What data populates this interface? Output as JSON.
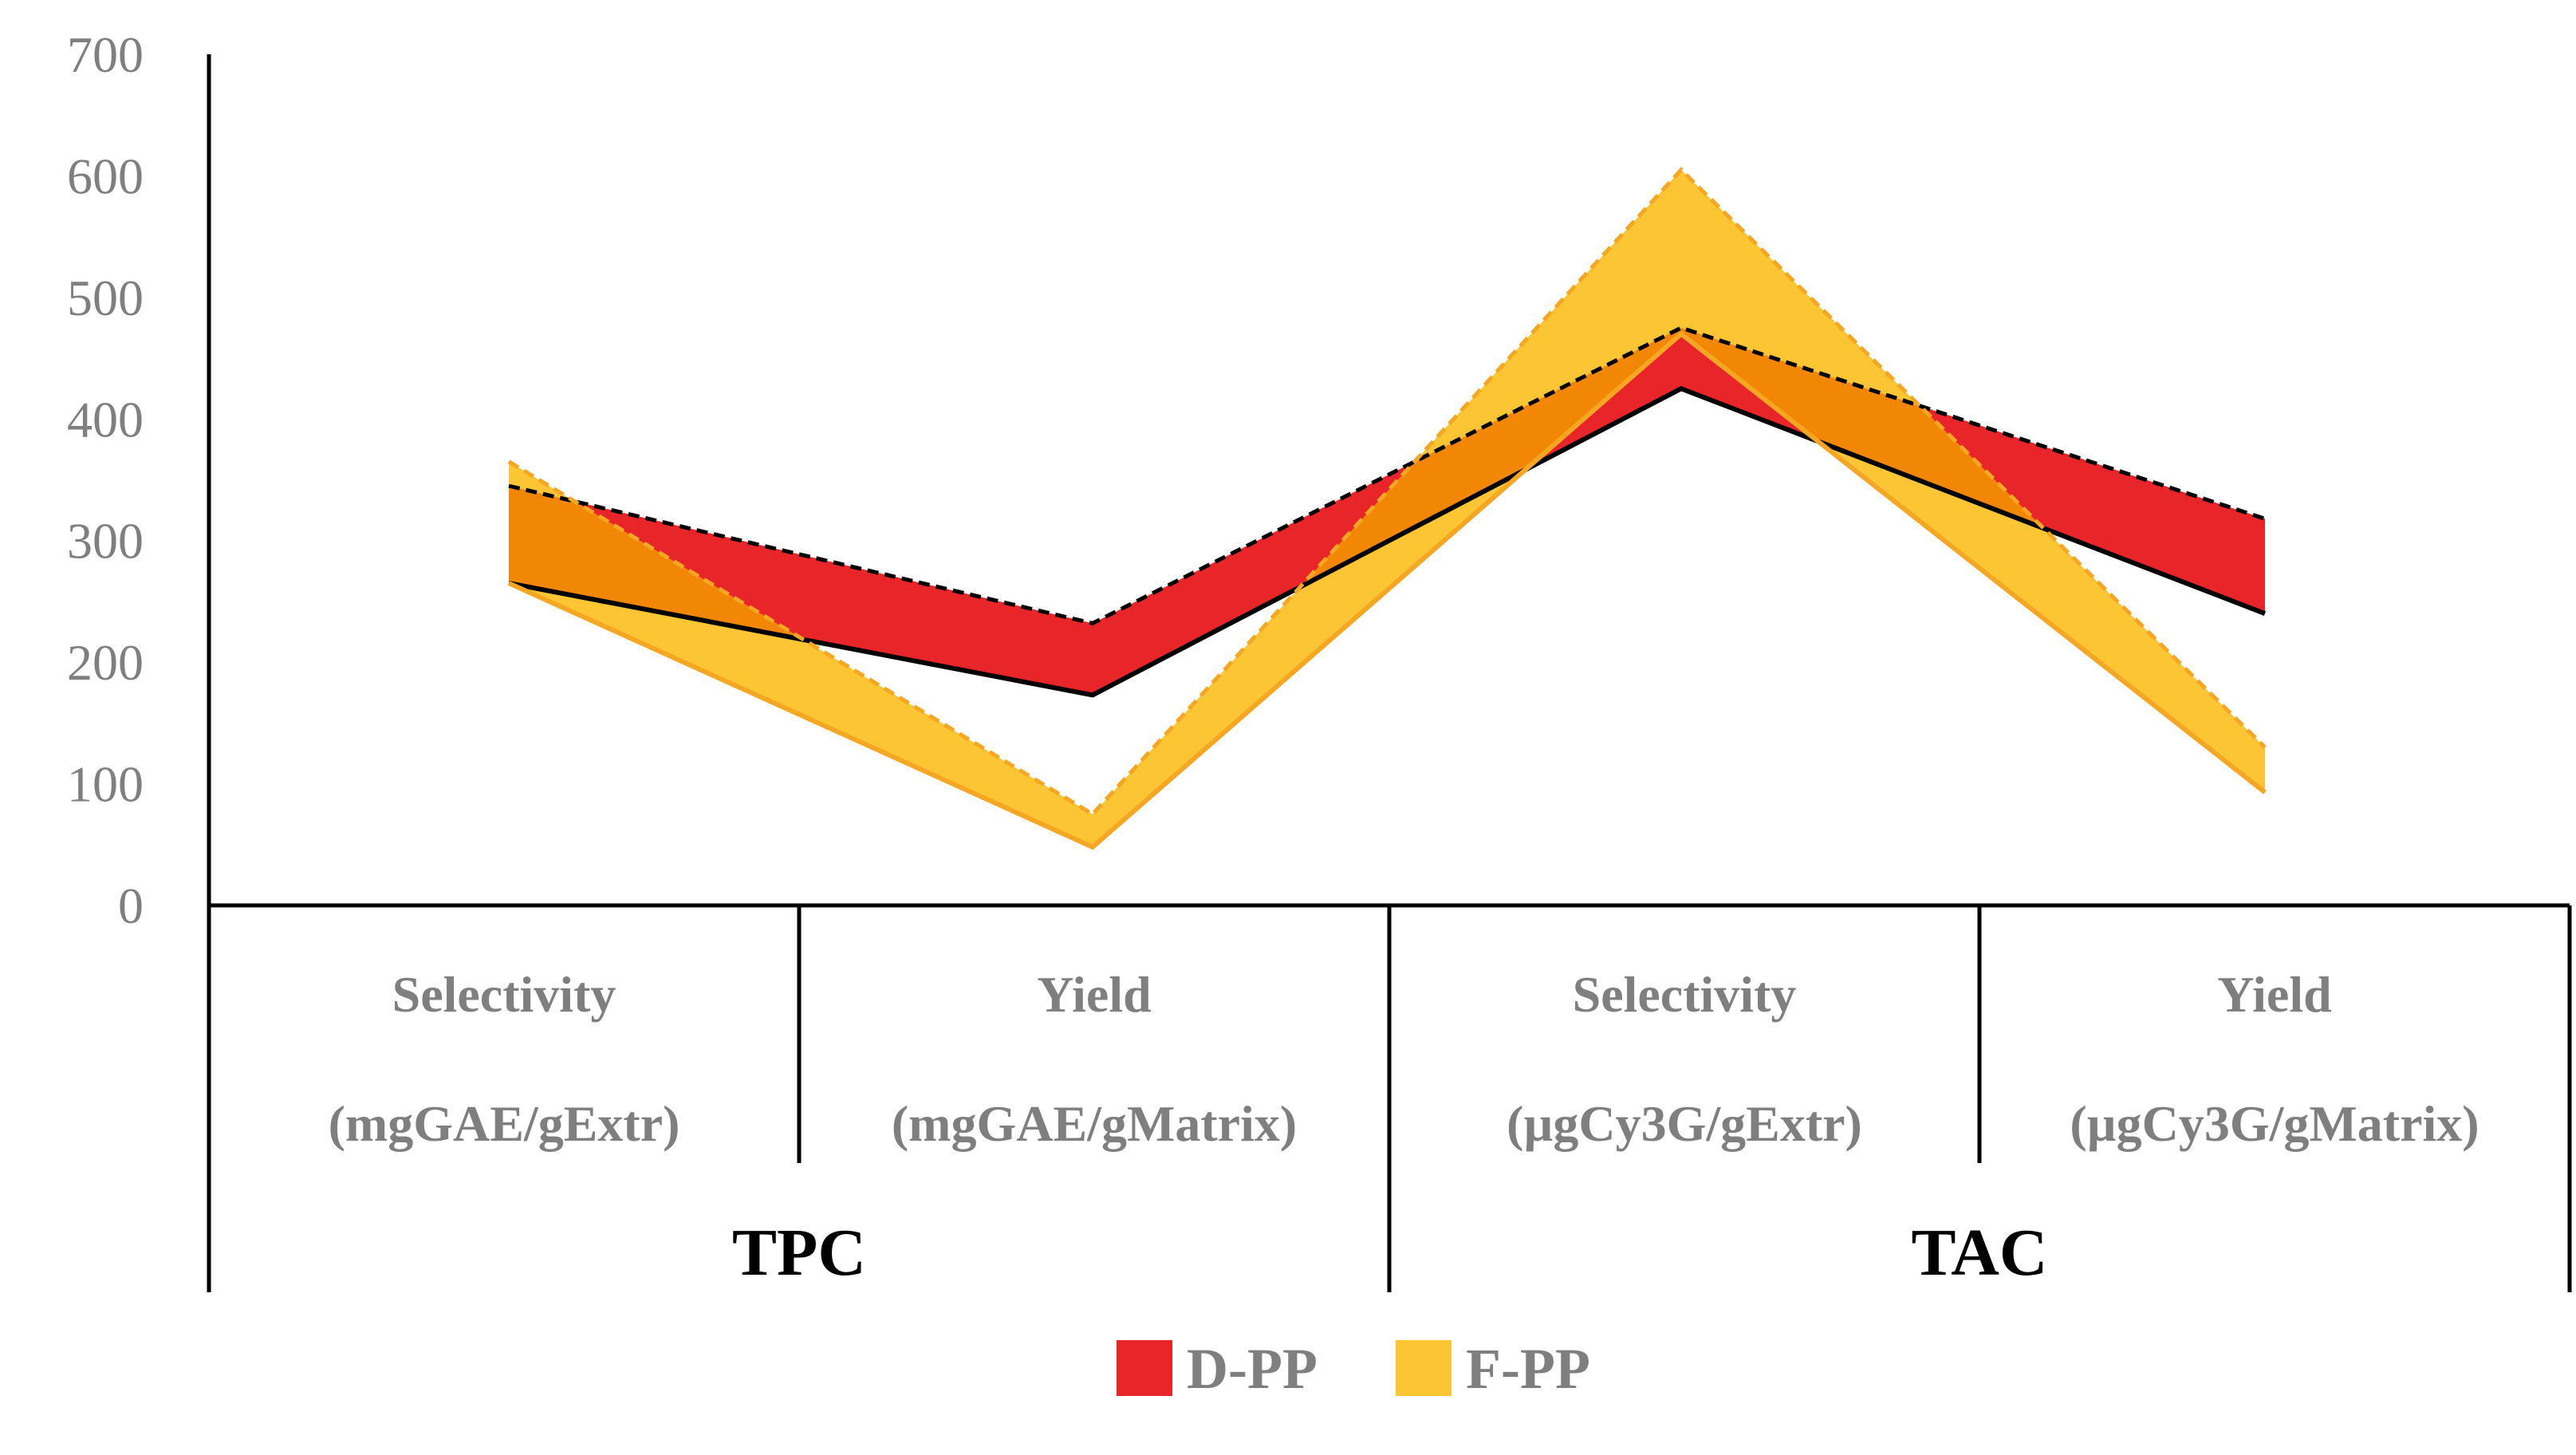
{
  "chart_data": {
    "type": "area",
    "ylim": [
      0,
      700
    ],
    "yticks": [
      0,
      100,
      200,
      300,
      400,
      500,
      600,
      700
    ],
    "categories": [
      {
        "name": "Selectivity",
        "unit": "(mgGAE/gExtr)"
      },
      {
        "name": "Yield",
        "unit": "(mgGAE/gMatrix)"
      },
      {
        "name": "Selectivity",
        "unit": "(µgCy3G/gExtr)"
      },
      {
        "name": "Yield",
        "unit": "(µgCy3G/gMatrix)"
      }
    ],
    "groups": [
      {
        "label": "TPC",
        "span": [
          0,
          1
        ]
      },
      {
        "label": "TAC",
        "span": [
          2,
          3
        ]
      }
    ],
    "series": [
      {
        "name": "D-PP",
        "color": "#e8262a",
        "upper": [
          345,
          232,
          475,
          318
        ],
        "lower": [
          265,
          173,
          425,
          240
        ]
      },
      {
        "name": "F-PP",
        "color": "#fcc534",
        "upper": [
          365,
          75,
          605,
          130
        ],
        "lower": [
          265,
          48,
          470,
          93
        ]
      }
    ],
    "overlap_color": "#f28705",
    "legend_position": "bottom-center"
  }
}
